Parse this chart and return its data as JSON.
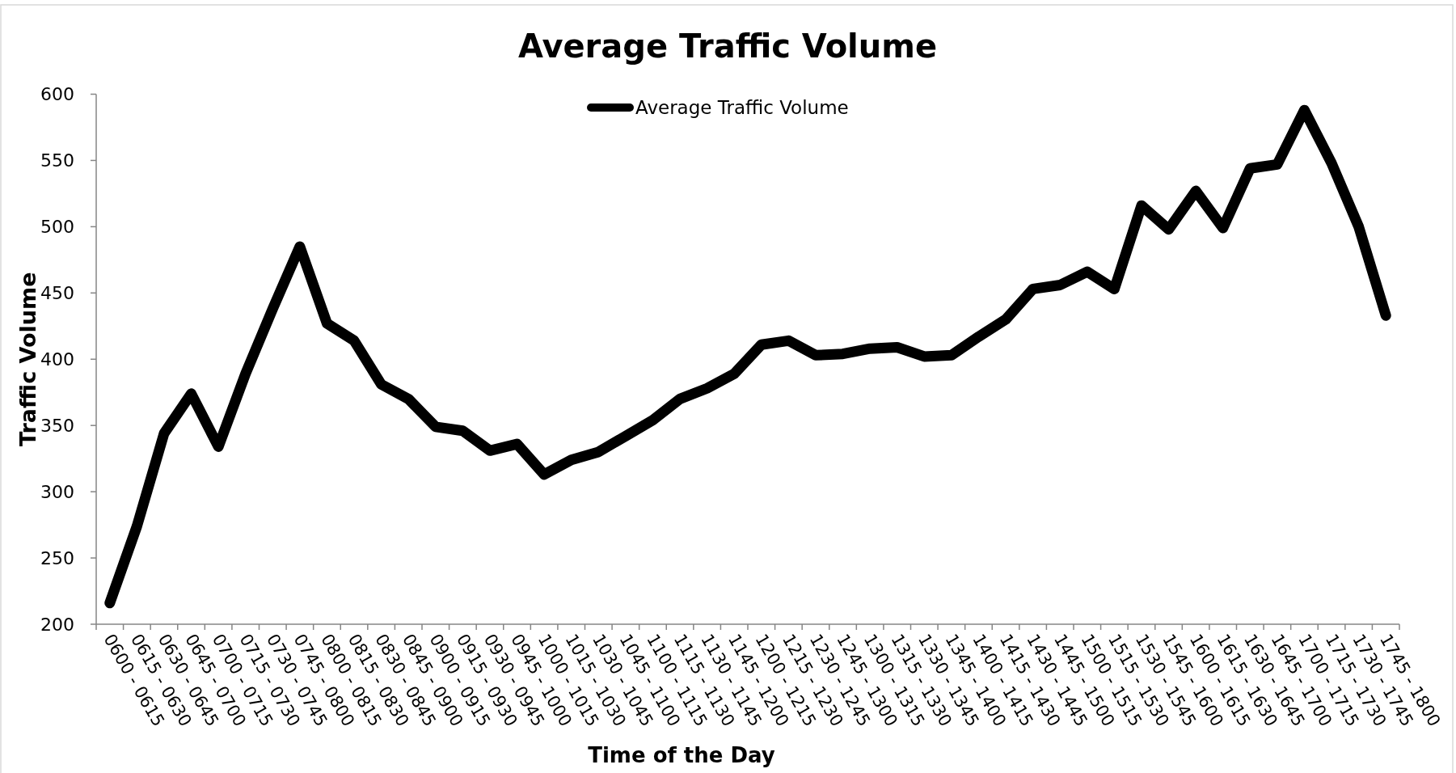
{
  "chart_data": {
    "type": "line",
    "title": "Average Traffic Volume",
    "xlabel": "Time of the Day",
    "ylabel": "Traffic Volume",
    "categories": [
      "0600 - 0615",
      "0615 - 0630",
      "0630 - 0645",
      "0645 - 0700",
      "0700 - 0715",
      "0715 - 0730",
      "0730 - 0745",
      "0745 - 0800",
      "0800 - 0815",
      "0815 - 0830",
      "0830 - 0845",
      "0845 - 0900",
      "0900 - 0915",
      "0915 - 0930",
      "0930 - 0945",
      "0945 - 1000",
      "1000 - 1015",
      "1015 - 1030",
      "1030 - 1045",
      "1045 - 1100",
      "1100 - 1115",
      "1115 - 1130",
      "1130 - 1145",
      "1145 - 1200",
      "1200 - 1215",
      "1215 - 1230",
      "1230 - 1245",
      "1245 - 1300",
      "1300 - 1315",
      "1315 - 1330",
      "1330 - 1345",
      "1345 - 1400",
      "1400 - 1415",
      "1415 - 1430",
      "1430 - 1445",
      "1445 - 1500",
      "1500 - 1515",
      "1515 - 1530",
      "1530 - 1545",
      "1545 - 1600",
      "1600 - 1615",
      "1615 - 1630",
      "1630 - 1645",
      "1645 - 1700",
      "1700 - 1715",
      "1715 - 1730",
      "1730 - 1745",
      "1745 - 1800"
    ],
    "series": [
      {
        "name": "Average Traffic Volume",
        "color": "#000000",
        "values": [
          216,
          274,
          344,
          374,
          334,
          389,
          438,
          485,
          427,
          414,
          381,
          370,
          349,
          346,
          331,
          336,
          313,
          324,
          330,
          342,
          354,
          370,
          378,
          389,
          411,
          414,
          403,
          404,
          408,
          409,
          402,
          403,
          417,
          430,
          453,
          456,
          466,
          453,
          516,
          498,
          527,
          499,
          544,
          547,
          588,
          548,
          500,
          433
        ]
      }
    ],
    "ylim": [
      200,
      600
    ],
    "yticks": [
      200,
      250,
      300,
      350,
      400,
      450,
      500,
      550,
      600
    ],
    "legend": "top",
    "line_style": "solid"
  }
}
